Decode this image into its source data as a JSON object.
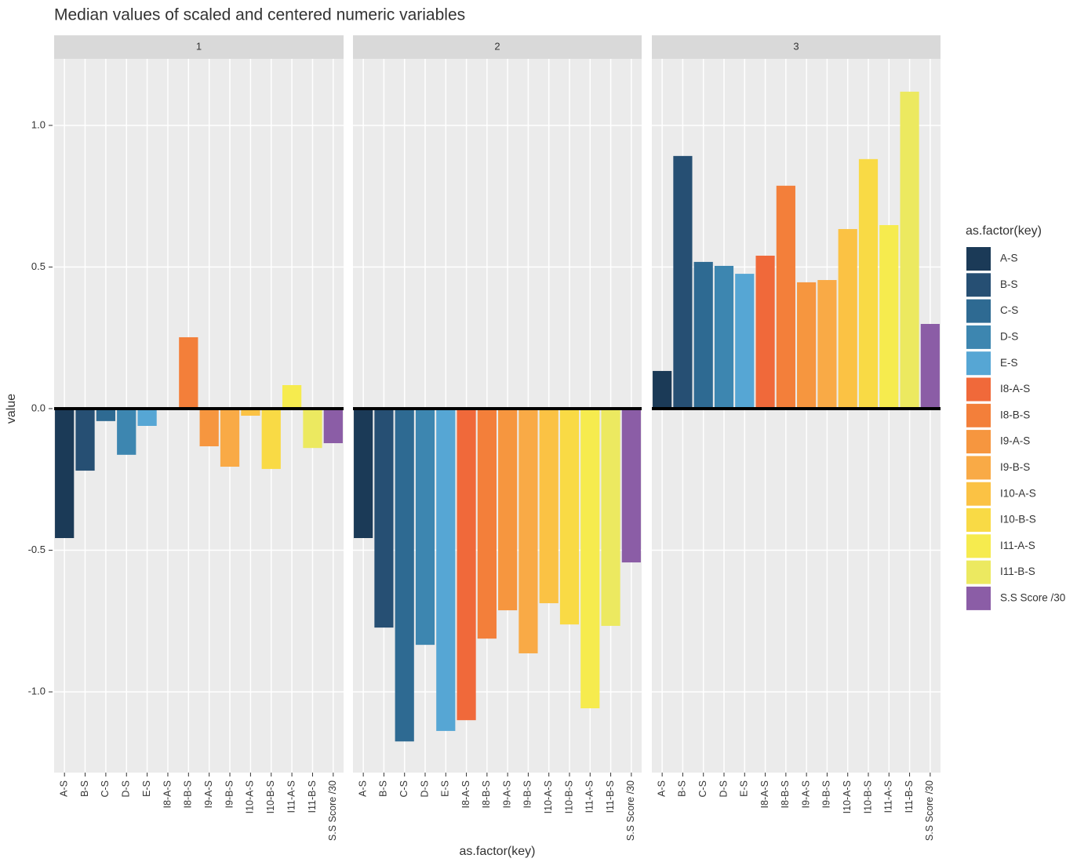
{
  "chart_data": {
    "type": "bar",
    "title": "Median values of scaled and centered numeric variables",
    "xlabel": "as.factor(key)",
    "ylabel": "value",
    "legend_title": "as.factor(key)",
    "categories": [
      "A-S",
      "B-S",
      "C-S",
      "D-S",
      "E-S",
      "I8-A-S",
      "I8-B-S",
      "I9-A-S",
      "I9-B-S",
      "I10-A-S",
      "I10-B-S",
      "I11-A-S",
      "I11-B-S",
      "S.S Score /30"
    ],
    "colors": [
      "#1b3a57",
      "#264f73",
      "#2e6a92",
      "#3d86b0",
      "#56a6d4",
      "#f0693a",
      "#f37f3a",
      "#f6963f",
      "#f9aa46",
      "#fbc244",
      "#f9da45",
      "#f6eb4e",
      "#ece960",
      "#8b5da6"
    ],
    "facets": [
      {
        "name": "1",
        "values": [
          -0.457,
          -0.219,
          -0.044,
          -0.163,
          -0.061,
          0,
          0.252,
          -0.133,
          -0.205,
          -0.025,
          -0.213,
          0.083,
          -0.139,
          -0.122
        ]
      },
      {
        "name": "2",
        "values": [
          -0.457,
          -0.773,
          -1.175,
          -0.834,
          -1.138,
          -1.1,
          -0.812,
          -0.712,
          -0.864,
          -0.687,
          -0.762,
          -1.058,
          -0.767,
          -0.543
        ]
      },
      {
        "name": "3",
        "values": [
          0.133,
          0.892,
          0.518,
          0.504,
          0.476,
          0.54,
          0.787,
          0.446,
          0.454,
          0.634,
          0.881,
          0.648,
          1.119,
          0.299
        ]
      }
    ],
    "ylim": [
      -1.285,
      1.235
    ],
    "yticks": [
      {
        "value": -1,
        "label": "-1.0"
      },
      {
        "value": -0.5,
        "label": "-0.5"
      },
      {
        "value": 0,
        "label": "0.0"
      },
      {
        "value": 0.5,
        "label": "0.5"
      },
      {
        "value": 1,
        "label": "1.0"
      }
    ],
    "grid": true,
    "legend": "right"
  }
}
